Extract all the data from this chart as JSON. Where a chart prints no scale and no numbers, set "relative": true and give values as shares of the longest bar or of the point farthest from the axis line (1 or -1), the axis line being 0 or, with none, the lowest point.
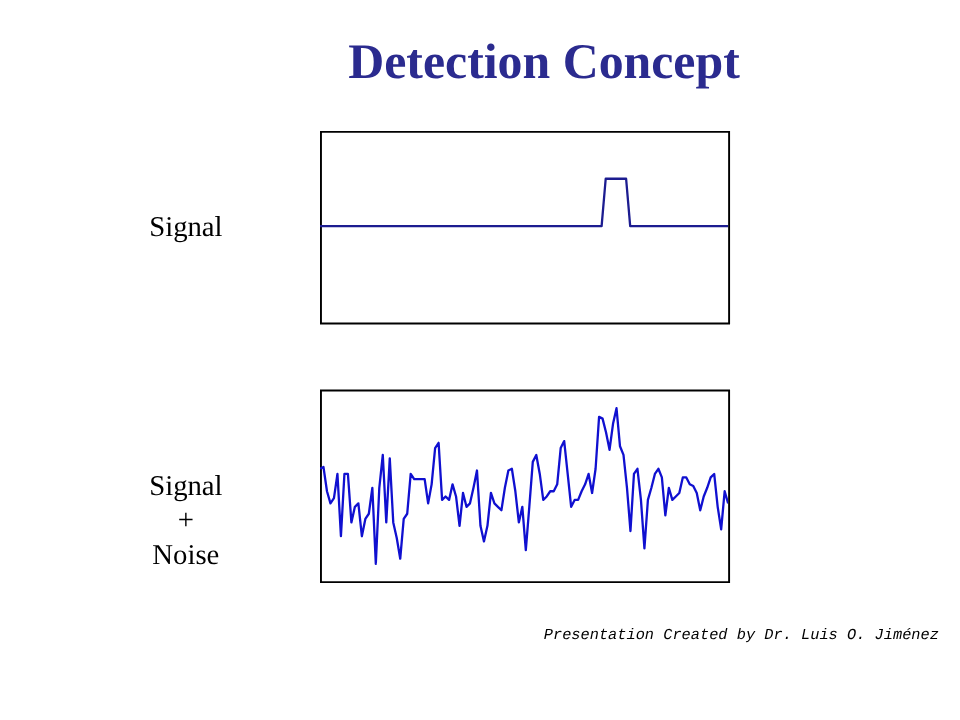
{
  "chart_data": [
    {
      "type": "line",
      "title": "Detection Concept",
      "ylabel": "Signal",
      "relative": true,
      "categories": [
        null,
        null,
        null,
        null,
        null,
        null,
        null,
        null,
        null,
        null,
        null,
        null,
        null,
        null,
        null,
        null,
        null,
        null,
        null,
        null,
        null,
        null,
        null,
        null,
        null,
        null,
        null,
        null,
        null,
        null,
        null,
        null,
        null,
        null,
        null,
        null,
        null,
        null,
        null,
        null,
        null,
        null,
        null,
        null,
        null,
        null,
        null,
        null,
        null,
        null,
        null,
        null,
        null,
        null,
        null,
        null,
        null,
        null,
        null,
        null,
        null,
        null,
        null,
        null,
        null,
        null,
        null,
        null,
        null,
        null,
        null,
        null,
        null,
        null,
        null,
        null,
        null,
        null,
        null,
        null,
        null,
        null,
        null,
        null,
        null,
        null,
        null,
        null,
        null,
        null,
        null,
        null,
        null,
        null,
        null,
        null,
        null,
        null,
        null,
        null,
        null
      ],
      "series": [
        {
          "color": "#1c1c90",
          "values": [
            0.67,
            0.67,
            0.67,
            0.67,
            0.67,
            0.67,
            0.67,
            0.67,
            0.67,
            0.67,
            0.67,
            0.67,
            0.67,
            0.67,
            0.67,
            0.67,
            0.67,
            0.67,
            0.67,
            0.67,
            0.67,
            0.67,
            0.67,
            0.67,
            0.67,
            0.67,
            0.67,
            0.67,
            0.67,
            0.67,
            0.67,
            0.67,
            0.67,
            0.67,
            0.67,
            0.67,
            0.67,
            0.67,
            0.67,
            0.67,
            0.67,
            0.67,
            0.67,
            0.67,
            0.67,
            0.67,
            0.67,
            0.67,
            0.67,
            0.67,
            0.67,
            0.67,
            0.67,
            0.67,
            0.67,
            0.67,
            0.67,
            0.67,
            0.67,
            0.67,
            0.67,
            0.67,
            0.67,
            0.67,
            0.67,
            0.67,
            0.67,
            0.67,
            0.67,
            0.67,
            1.0,
            1.0,
            1.0,
            1.0,
            1.0,
            1.0,
            0.67,
            0.67,
            0.67,
            0.67,
            0.67,
            0.67,
            0.67,
            0.67,
            0.67,
            0.67,
            0.67,
            0.67,
            0.67,
            0.67,
            0.67,
            0.67,
            0.67,
            0.67,
            0.67,
            0.67,
            0.67,
            0.67,
            0.67,
            0.67,
            0.67
          ]
        }
      ]
    },
    {
      "type": "line",
      "ylabel": "Signal + Noise",
      "relative": true,
      "annotations": [
        "Presentation Created by Dr. Luis O. Jiménez"
      ],
      "categories": [
        null,
        null,
        null,
        null,
        null,
        null,
        null,
        null,
        null,
        null,
        null,
        null,
        null,
        null,
        null,
        null,
        null,
        null,
        null,
        null,
        null,
        null,
        null,
        null,
        null,
        null,
        null,
        null,
        null,
        null,
        null,
        null,
        null,
        null,
        null,
        null,
        null,
        null,
        null,
        null,
        null,
        null,
        null,
        null,
        null,
        null,
        null,
        null,
        null,
        null,
        null,
        null,
        null,
        null,
        null,
        null,
        null,
        null,
        null,
        null,
        null,
        null,
        null,
        null,
        null,
        null,
        null,
        null,
        null,
        null,
        null,
        null,
        null,
        null,
        null,
        null,
        null,
        null,
        null,
        null,
        null,
        null,
        null,
        null,
        null,
        null,
        null,
        null,
        null,
        null,
        null,
        null,
        null,
        null,
        null,
        null,
        null,
        null,
        null,
        null,
        null,
        null,
        null,
        null,
        null,
        null,
        null,
        null,
        null,
        null,
        null,
        null,
        null,
        null,
        null,
        null,
        null,
        null
      ],
      "series": [
        {
          "color": "#1010d0",
          "values": [
            0.65,
            0.66,
            0.52,
            0.45,
            0.48,
            0.62,
            0.26,
            0.62,
            0.62,
            0.34,
            0.43,
            0.45,
            0.26,
            0.36,
            0.39,
            0.54,
            0.1,
            0.54,
            0.73,
            0.34,
            0.71,
            0.34,
            0.25,
            0.13,
            0.36,
            0.39,
            0.62,
            0.59,
            0.59,
            0.59,
            0.59,
            0.45,
            0.56,
            0.77,
            0.8,
            0.47,
            0.49,
            0.47,
            0.56,
            0.49,
            0.32,
            0.51,
            0.43,
            0.45,
            0.54,
            0.64,
            0.32,
            0.23,
            0.32,
            0.51,
            0.45,
            0.43,
            0.41,
            0.54,
            0.64,
            0.65,
            0.52,
            0.34,
            0.43,
            0.18,
            0.43,
            0.69,
            0.73,
            0.62,
            0.47,
            0.49,
            0.52,
            0.52,
            0.56,
            0.77,
            0.81,
            0.62,
            0.43,
            0.47,
            0.47,
            0.52,
            0.56,
            0.62,
            0.51,
            0.65,
            0.95,
            0.94,
            0.86,
            0.76,
            0.91,
            1.0,
            0.78,
            0.73,
            0.54,
            0.29,
            0.62,
            0.65,
            0.47,
            0.19,
            0.47,
            0.54,
            0.62,
            0.65,
            0.6,
            0.38,
            0.54,
            0.47,
            0.49,
            0.51,
            0.6,
            0.6,
            0.56,
            0.55,
            0.51,
            0.41,
            0.49,
            0.54,
            0.6,
            0.62,
            0.43,
            0.3,
            0.52,
            0.45
          ]
        }
      ]
    }
  ]
}
